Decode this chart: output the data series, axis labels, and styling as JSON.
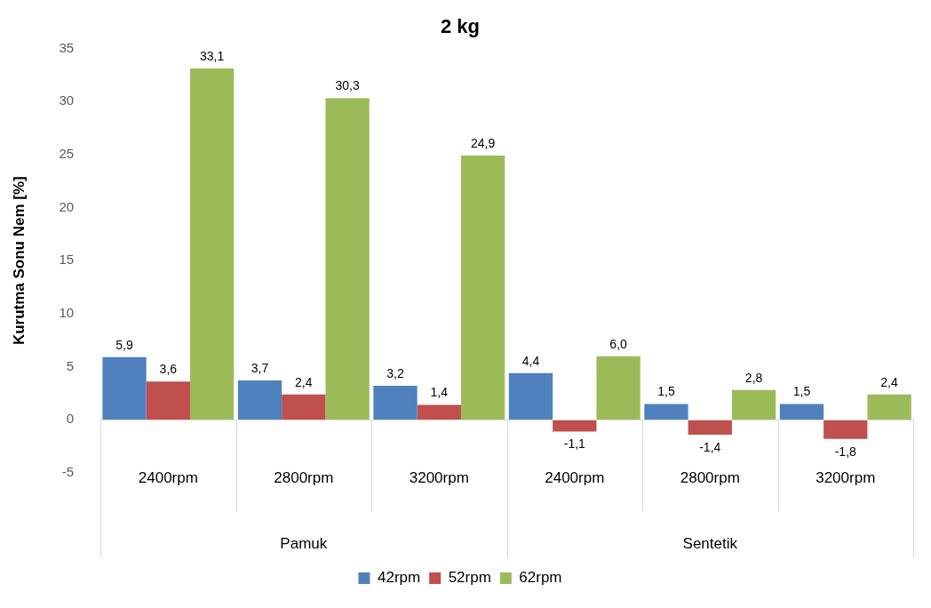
{
  "chart_data": {
    "type": "bar",
    "title": "2 kg",
    "ylabel": "Kurutma Sonu Nem [%]",
    "categories": [
      "2400rpm",
      "2800rpm",
      "3200rpm",
      "2400rpm",
      "2800rpm",
      "3200rpm"
    ],
    "annotations": [
      "Pamuk",
      "Sentetik"
    ],
    "series": [
      {
        "name": "42rpm",
        "color": "#4f81bd",
        "values": [
          5.9,
          3.7,
          3.2,
          4.4,
          1.5,
          1.5
        ],
        "value_labels": [
          "5,9",
          "3,7",
          "3,2",
          "4,4",
          "1,5",
          "1,5"
        ]
      },
      {
        "name": "52rpm",
        "color": "#c0504d",
        "values": [
          3.6,
          2.4,
          1.4,
          -1.1,
          -1.4,
          -1.8
        ],
        "value_labels": [
          "3,6",
          "2,4",
          "1,4",
          "-1,1",
          "-1,4",
          "-1,8"
        ]
      },
      {
        "name": "62rpm",
        "color": "#9bbb59",
        "values": [
          33.1,
          30.3,
          24.9,
          6.0,
          2.8,
          2.4
        ],
        "value_labels": [
          "33,1",
          "30,3",
          "24,9",
          "6,0",
          "2,8",
          "2,4"
        ]
      }
    ],
    "ylim": [
      -5,
      35
    ],
    "yticks": [
      -5,
      0,
      5,
      10,
      15,
      20,
      25,
      30,
      35
    ],
    "legend": "bottom"
  }
}
